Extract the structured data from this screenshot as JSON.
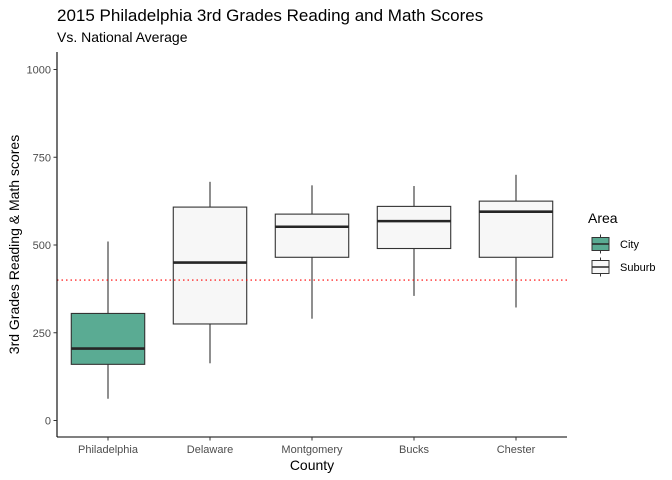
{
  "chart_data": {
    "type": "boxplot",
    "title": "2015 Philadelphia 3rd Grades Reading and Math Scores",
    "subtitle": "Vs. National Average",
    "xlabel": "County",
    "ylabel": "3rd Grades Reading & Math scores",
    "ylim": [
      0,
      1050
    ],
    "yticks": [
      0,
      250,
      500,
      750,
      1000
    ],
    "ytick_labels": [
      "0",
      "250",
      "500",
      "750",
      "1000"
    ],
    "grid": false,
    "reference_line": {
      "value": 400,
      "color": "#ff0000",
      "style": "dotted"
    },
    "categories": [
      "Philadelphia",
      "Delaware",
      "Montgomery",
      "Bucks",
      "Chester"
    ],
    "boxes": [
      {
        "category": "Philadelphia",
        "area": "City",
        "min": 62,
        "q1": 160,
        "median": 205,
        "q3": 305,
        "max": 510
      },
      {
        "category": "Delaware",
        "area": "Suburb",
        "min": 163,
        "q1": 275,
        "median": 450,
        "q3": 608,
        "max": 680
      },
      {
        "category": "Montgomery",
        "area": "Suburb",
        "min": 290,
        "q1": 465,
        "median": 552,
        "q3": 588,
        "max": 670
      },
      {
        "category": "Bucks",
        "area": "Suburb",
        "min": 355,
        "q1": 490,
        "median": 568,
        "q3": 610,
        "max": 668
      },
      {
        "category": "Chester",
        "area": "Suburb",
        "min": 322,
        "q1": 465,
        "median": 595,
        "q3": 625,
        "max": 700
      }
    ],
    "legend": {
      "title": "Area",
      "placement": "right",
      "entries": [
        {
          "label": "City",
          "color": "#5aab93"
        },
        {
          "label": "Suburb",
          "color": "#f7f7f7"
        }
      ]
    },
    "colors": {
      "box_outline": "#333333",
      "median": "#262626",
      "axis": "#000000"
    }
  }
}
